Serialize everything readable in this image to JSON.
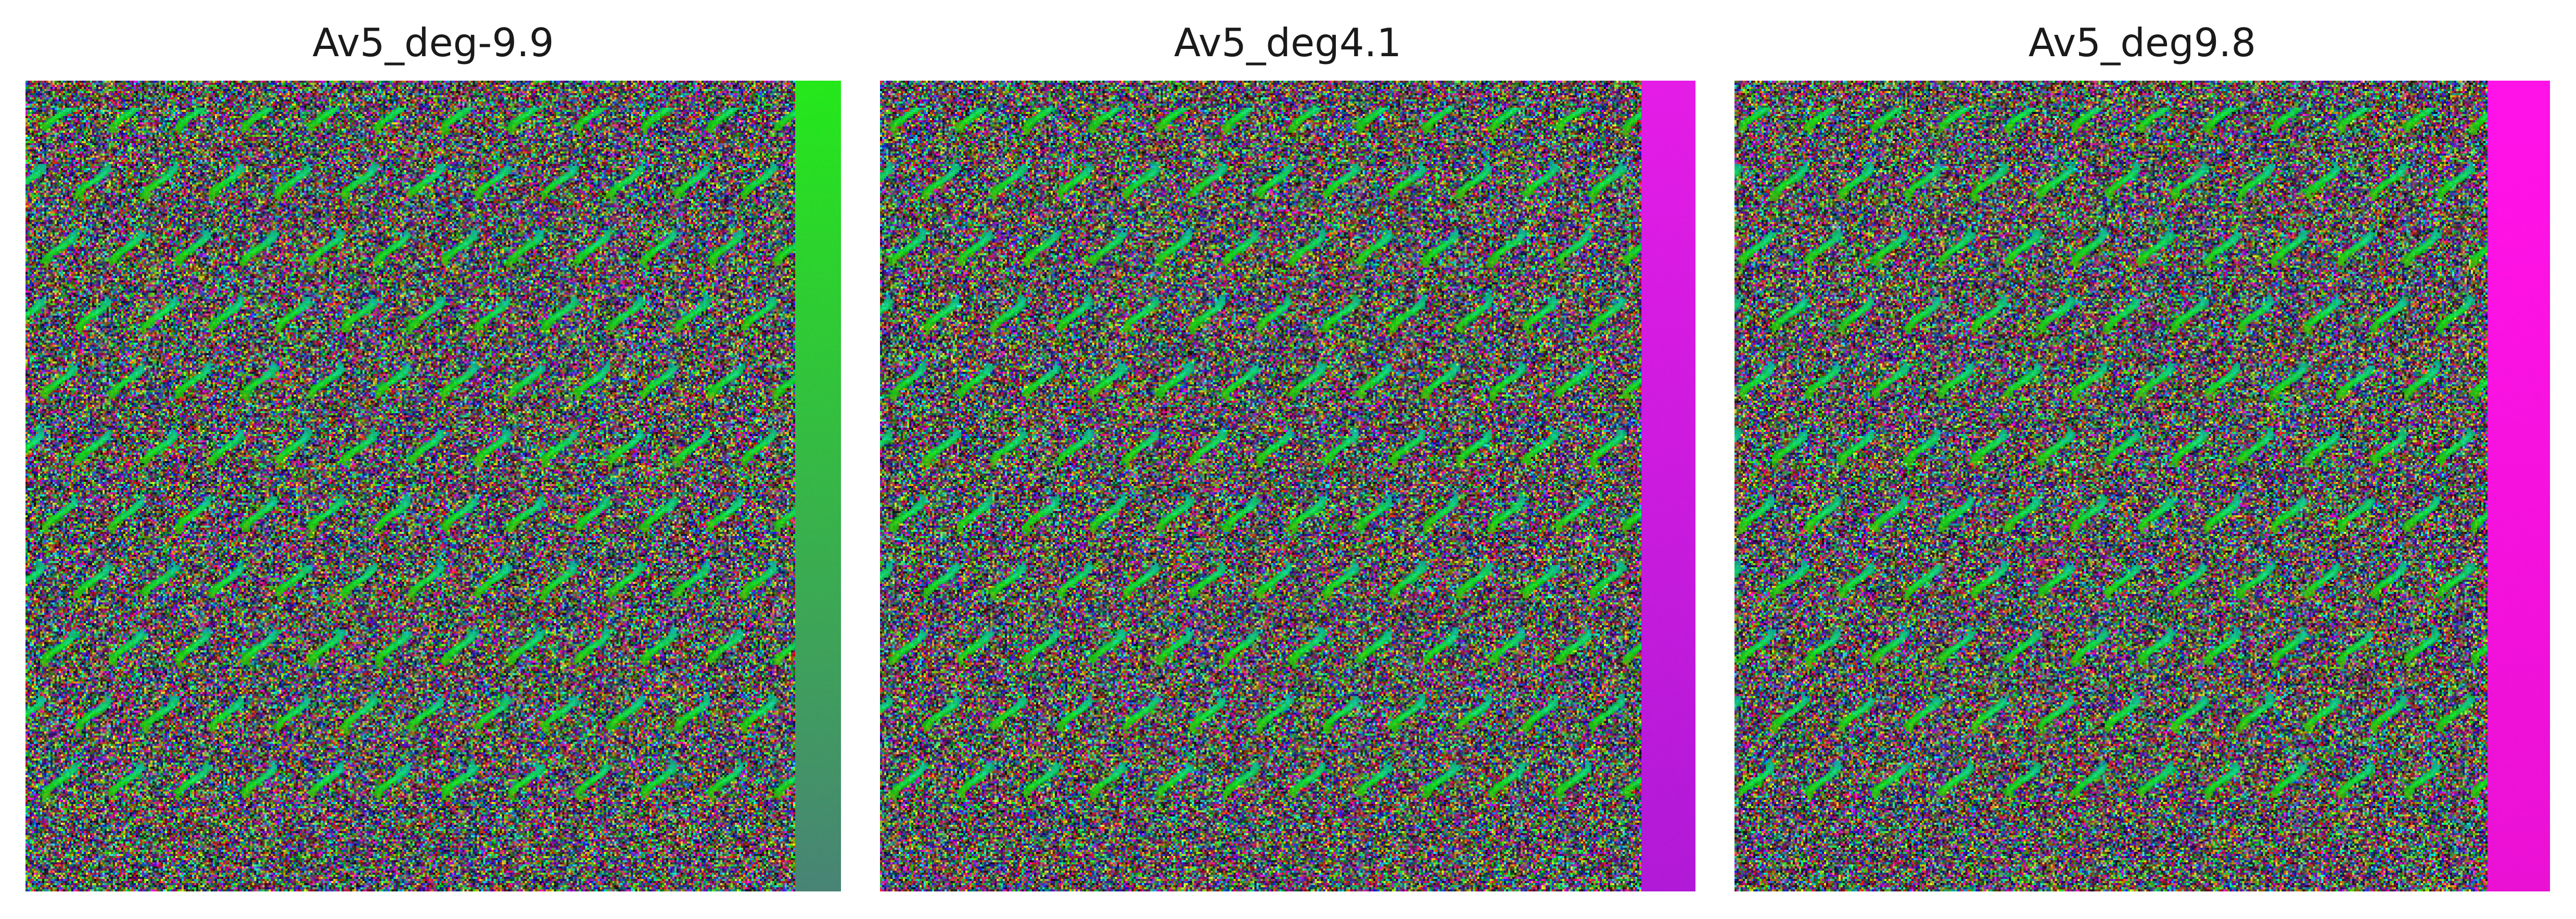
{
  "figure": {
    "panels": [
      {
        "title": "Av5_deg-9.9",
        "seed": 11,
        "band_color": "#22e81a",
        "band_shade": "#6a1fd0"
      },
      {
        "title": "Av5_deg4.1",
        "seed": 37,
        "band_color": "#e21ce6",
        "band_shade": "#7a18c8"
      },
      {
        "title": "Av5_deg9.8",
        "seed": 73,
        "band_color": "#ff12e8",
        "band_shade": "#d010c0"
      }
    ],
    "colors": {
      "background": "#ffffff",
      "title_text": "#1a1a1a"
    },
    "icons": {
      "image": "hsv-phase-map-image"
    }
  }
}
